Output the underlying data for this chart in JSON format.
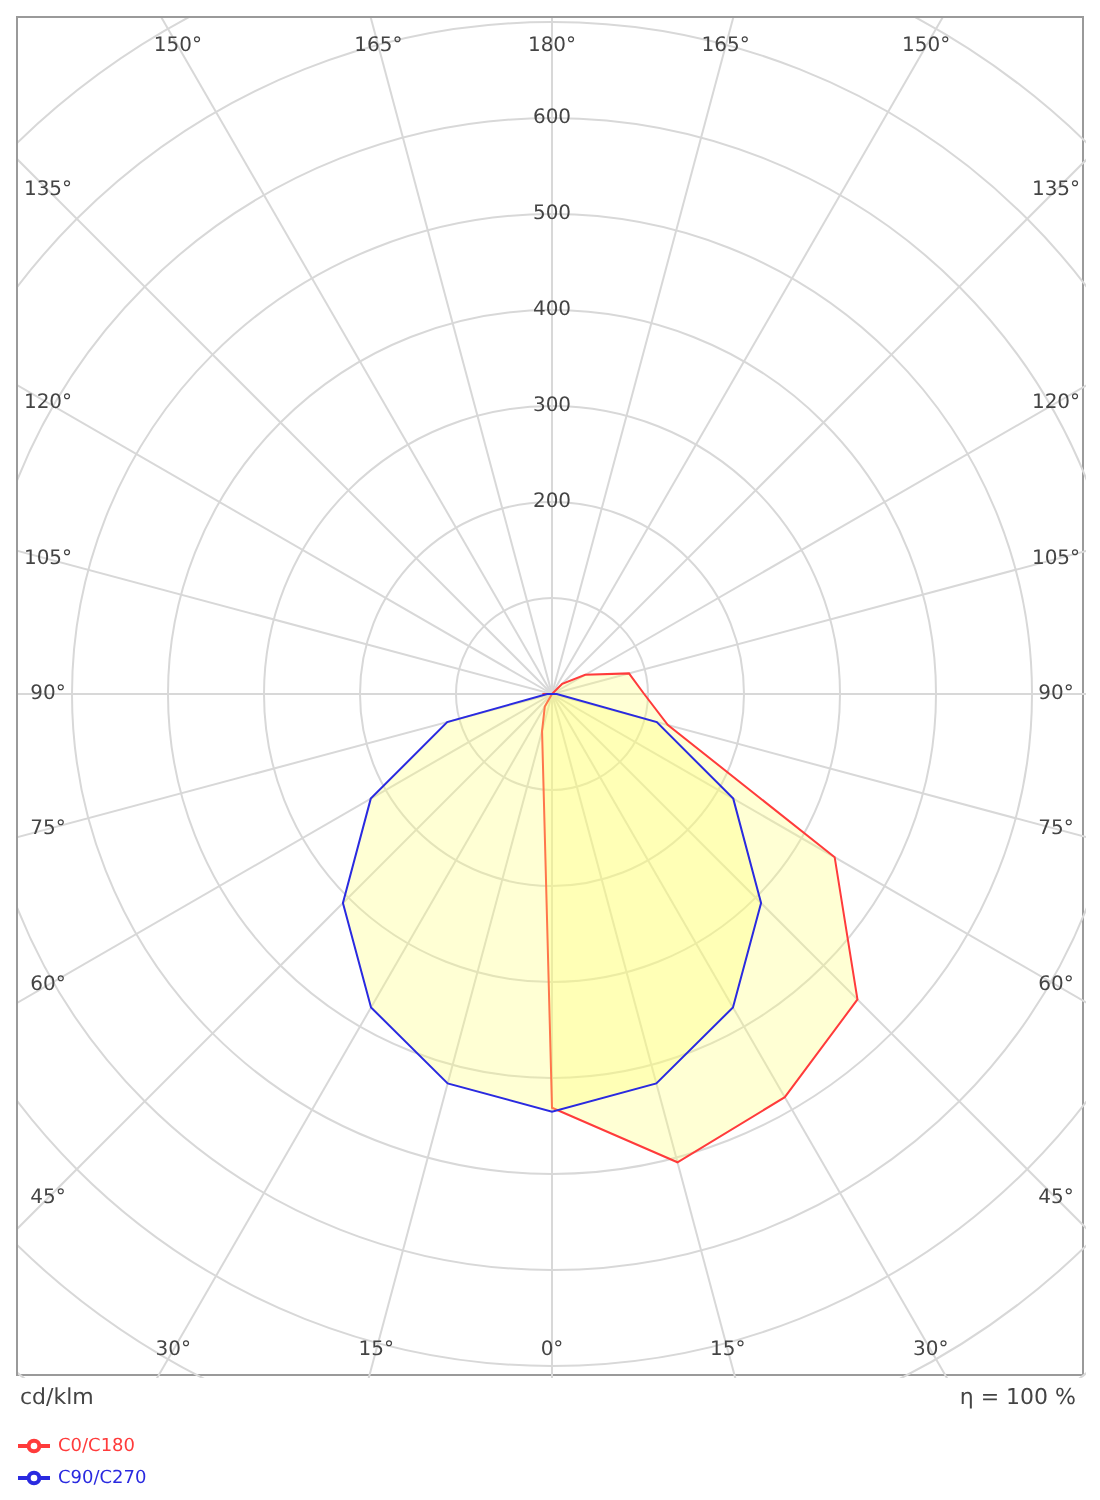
{
  "chart_data": {
    "type": "radar",
    "ylabel": "cd/klm",
    "annotations": [
      "η = 100 %"
    ],
    "categories": [
      "180°",
      "165°",
      "150°",
      "135°",
      "120°",
      "105°",
      "90°",
      "75°",
      "60°",
      "45°",
      "30°",
      "15°",
      "0°",
      "15°",
      "30°",
      "45°",
      "60°",
      "75°",
      "90°",
      "105°",
      "120°",
      "135°",
      "150°",
      "165°"
    ],
    "series": [
      {
        "name": "C0/C180",
        "color": "#ff3b3b",
        "values": [
          0,
          0,
          0,
          15,
          40,
          83,
          96,
          125,
          340,
          450,
          485,
          505,
          431,
          40,
          15,
          0,
          0,
          0,
          10,
          0,
          0,
          0,
          0,
          0
        ]
      },
      {
        "name": "C90/C270",
        "color": "#2a2ae0",
        "values": [
          0,
          0,
          0,
          0,
          0,
          0,
          5,
          113,
          218,
          308,
          377,
          420,
          435,
          420,
          377,
          308,
          218,
          113,
          5,
          0,
          0,
          0,
          0,
          0
        ]
      }
    ],
    "ylim": [
      0,
      900
    ],
    "yticks": [
      200,
      300,
      400,
      500,
      600
    ],
    "grid": true,
    "legend": "bottom left",
    "marker": "none"
  }
}
